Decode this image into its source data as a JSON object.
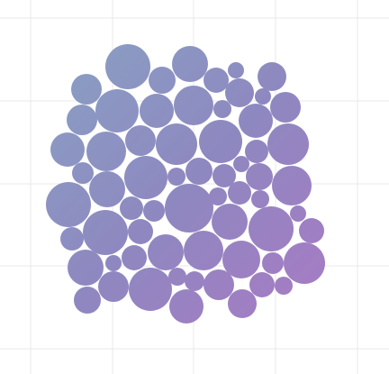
{
  "palette": {
    "background": "#ffffff",
    "grid": "#e8e8e8",
    "gradient_top_left": "#8a9fc3",
    "gradient_mid": "#8e88c0",
    "gradient_bottom_right": "#a77bc4"
  },
  "artwork": {
    "kind": "circle-packing",
    "circle_count": 73
  }
}
